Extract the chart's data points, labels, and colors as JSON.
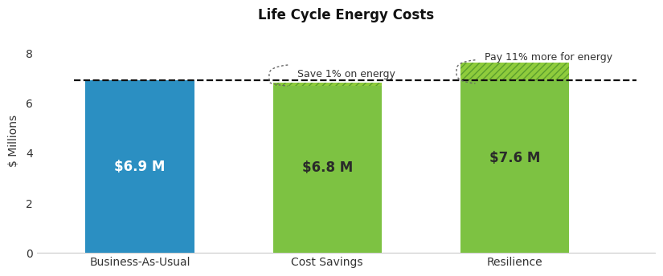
{
  "title": "Life Cycle Energy Costs",
  "categories": [
    "Business-As-Usual",
    "Cost Savings",
    "Resilience"
  ],
  "values": [
    6.9,
    6.8,
    7.6
  ],
  "bar_colors": [
    "#2B8FC2",
    "#7DC242",
    "#7DC242"
  ],
  "bar_labels": [
    "$6.9 M",
    "$6.8 M",
    "$7.6 M"
  ],
  "label_colors": [
    "white",
    "#2a2a2a",
    "#2a2a2a"
  ],
  "ylabel": "$ Millions",
  "ylim": [
    0,
    9
  ],
  "yticks": [
    0,
    2,
    4,
    6,
    8
  ],
  "reference_line": 6.9,
  "reference_line_color": "#111111",
  "annotation_save": "Save 1% on energy",
  "annotation_pay": "Pay 11% more for energy",
  "hatch_color": "#5a9e2f",
  "hatch_fill": "#8fcc3c",
  "background_color": "#ffffff",
  "title_fontsize": 12,
  "bar_label_fontsize": 12,
  "axis_fontsize": 10,
  "bar_width": 0.58
}
